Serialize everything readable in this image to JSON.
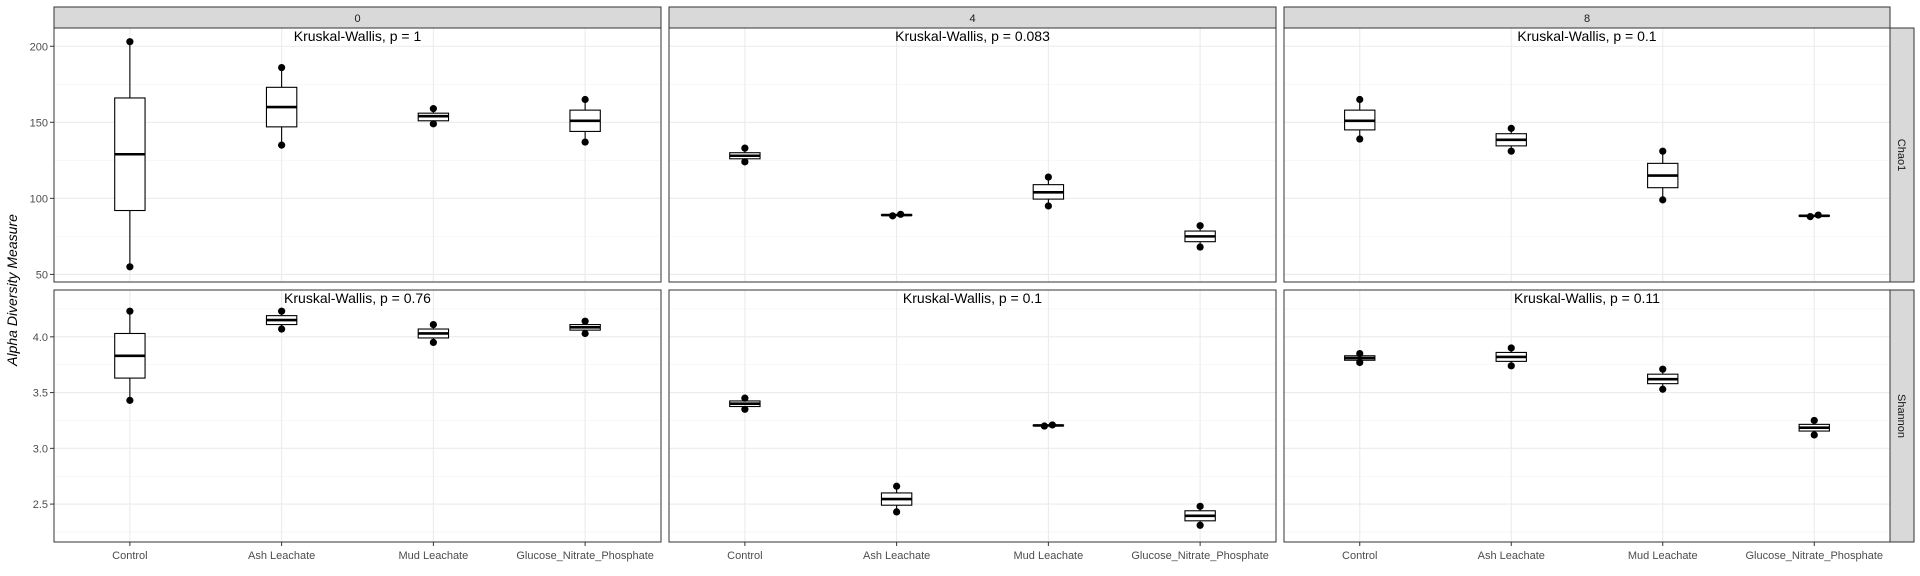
{
  "chart_data": {
    "type": "box",
    "ylabel": "Alpha Diversity Measure",
    "categories": [
      "Control",
      "Ash Leachate",
      "Mud Leachate",
      "Glucose_Nitrate_Phosphate"
    ],
    "columns": [
      "0",
      "4",
      "8"
    ],
    "rows": [
      {
        "label": "Chao1",
        "ylim": [
          45,
          212
        ],
        "yticks": [
          50,
          100,
          150,
          200
        ]
      },
      {
        "label": "Shannon",
        "ylim": [
          2.16,
          4.42
        ],
        "yticks": [
          2.5,
          3.0,
          3.5,
          4.0
        ]
      }
    ],
    "panels": [
      {
        "row": "Chao1",
        "col": "0",
        "annotation": "Kruskal-Wallis, p = 1",
        "boxes": [
          {
            "category": "Control",
            "min": 55,
            "q1": 92,
            "median": 129,
            "q3": 166,
            "max": 203,
            "points": [
              55,
              203
            ]
          },
          {
            "category": "Ash Leachate",
            "min": 135,
            "q1": 147,
            "median": 160,
            "q3": 173,
            "max": 186,
            "points": [
              135,
              186
            ]
          },
          {
            "category": "Mud Leachate",
            "min": 149,
            "q1": 151,
            "median": 154,
            "q3": 156,
            "max": 159,
            "points": [
              149,
              159
            ]
          },
          {
            "category": "Glucose_Nitrate_Phosphate",
            "min": 137,
            "q1": 144,
            "median": 151,
            "q3": 158,
            "max": 165,
            "points": [
              137,
              165
            ]
          }
        ]
      },
      {
        "row": "Chao1",
        "col": "4",
        "annotation": "Kruskal-Wallis, p = 0.083",
        "boxes": [
          {
            "category": "Control",
            "min": 124,
            "q1": 126,
            "median": 128,
            "q3": 130,
            "max": 133,
            "points": [
              124,
              133
            ]
          },
          {
            "category": "Ash Leachate",
            "min": 88.5,
            "q1": 88.8,
            "median": 89,
            "q3": 89.2,
            "max": 89.5,
            "points": [
              88.5,
              89.5
            ]
          },
          {
            "category": "Mud Leachate",
            "min": 95,
            "q1": 99.5,
            "median": 104,
            "q3": 109,
            "max": 114,
            "points": [
              95,
              114
            ]
          },
          {
            "category": "Glucose_Nitrate_Phosphate",
            "min": 68,
            "q1": 71.5,
            "median": 75,
            "q3": 78.5,
            "max": 82,
            "points": [
              68,
              82
            ]
          }
        ]
      },
      {
        "row": "Chao1",
        "col": "8",
        "annotation": "Kruskal-Wallis, p = 0.1",
        "boxes": [
          {
            "category": "Control",
            "min": 139,
            "q1": 145,
            "median": 151,
            "q3": 158,
            "max": 165,
            "points": [
              139,
              165
            ]
          },
          {
            "category": "Ash Leachate",
            "min": 131,
            "q1": 134.5,
            "median": 138.5,
            "q3": 142.5,
            "max": 146,
            "points": [
              131,
              146
            ]
          },
          {
            "category": "Mud Leachate",
            "min": 99,
            "q1": 107,
            "median": 115,
            "q3": 123,
            "max": 131,
            "points": [
              99,
              131
            ]
          },
          {
            "category": "Glucose_Nitrate_Phosphate",
            "min": 88,
            "q1": 88.3,
            "median": 88.5,
            "q3": 88.8,
            "max": 89,
            "points": [
              88,
              89
            ]
          }
        ]
      },
      {
        "row": "Shannon",
        "col": "0",
        "annotation": "Kruskal-Wallis, p = 0.76",
        "boxes": [
          {
            "category": "Control",
            "min": 3.43,
            "q1": 3.63,
            "median": 3.83,
            "q3": 4.03,
            "max": 4.23,
            "points": [
              3.43,
              4.23
            ]
          },
          {
            "category": "Ash Leachate",
            "min": 4.07,
            "q1": 4.11,
            "median": 4.15,
            "q3": 4.19,
            "max": 4.23,
            "points": [
              4.07,
              4.23
            ]
          },
          {
            "category": "Mud Leachate",
            "min": 3.95,
            "q1": 3.99,
            "median": 4.03,
            "q3": 4.07,
            "max": 4.11,
            "points": [
              3.95,
              4.11
            ]
          },
          {
            "category": "Glucose_Nitrate_Phosphate",
            "min": 4.03,
            "q1": 4.06,
            "median": 4.085,
            "q3": 4.11,
            "max": 4.14,
            "points": [
              4.03,
              4.14
            ]
          }
        ]
      },
      {
        "row": "Shannon",
        "col": "4",
        "annotation": "Kruskal-Wallis, p = 0.1",
        "boxes": [
          {
            "category": "Control",
            "min": 3.35,
            "q1": 3.375,
            "median": 3.4,
            "q3": 3.425,
            "max": 3.45,
            "points": [
              3.35,
              3.45
            ]
          },
          {
            "category": "Ash Leachate",
            "min": 2.43,
            "q1": 2.49,
            "median": 2.545,
            "q3": 2.6,
            "max": 2.66,
            "points": [
              2.43,
              2.66
            ]
          },
          {
            "category": "Mud Leachate",
            "min": 3.2,
            "q1": 3.202,
            "median": 3.205,
            "q3": 3.208,
            "max": 3.21,
            "points": [
              3.2,
              3.21
            ]
          },
          {
            "category": "Glucose_Nitrate_Phosphate",
            "min": 2.31,
            "q1": 2.35,
            "median": 2.395,
            "q3": 2.44,
            "max": 2.48,
            "points": [
              2.31,
              2.48
            ]
          }
        ]
      },
      {
        "row": "Shannon",
        "col": "8",
        "annotation": "Kruskal-Wallis, p = 0.11",
        "boxes": [
          {
            "category": "Control",
            "min": 3.77,
            "q1": 3.79,
            "median": 3.81,
            "q3": 3.83,
            "max": 3.85,
            "points": [
              3.77,
              3.85
            ]
          },
          {
            "category": "Ash Leachate",
            "min": 3.74,
            "q1": 3.78,
            "median": 3.82,
            "q3": 3.86,
            "max": 3.9,
            "points": [
              3.74,
              3.9
            ]
          },
          {
            "category": "Mud Leachate",
            "min": 3.53,
            "q1": 3.58,
            "median": 3.62,
            "q3": 3.665,
            "max": 3.71,
            "points": [
              3.53,
              3.71
            ]
          },
          {
            "category": "Glucose_Nitrate_Phosphate",
            "min": 3.12,
            "q1": 3.155,
            "median": 3.185,
            "q3": 3.215,
            "max": 3.25,
            "points": [
              3.12,
              3.25
            ]
          }
        ]
      }
    ]
  }
}
